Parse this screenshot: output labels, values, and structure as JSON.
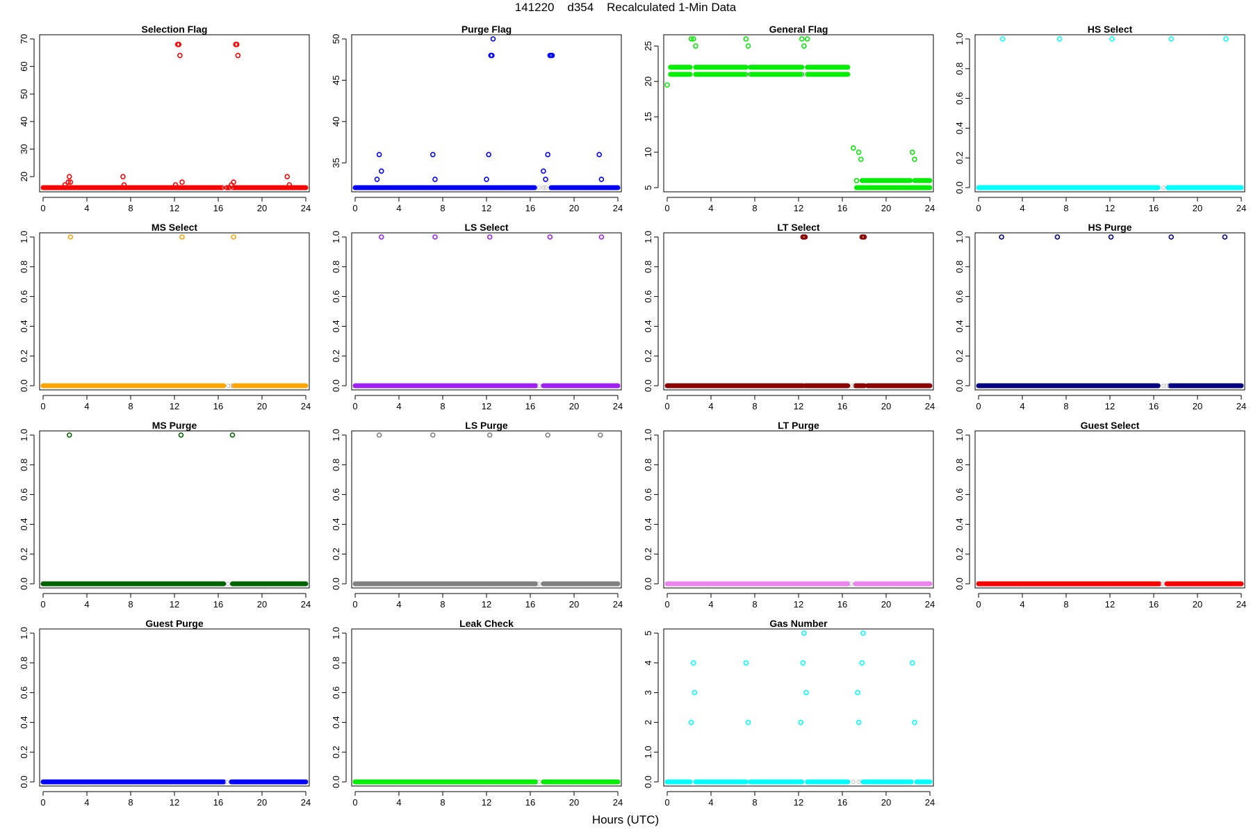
{
  "figure": {
    "title": "141220    d354    Recalculated 1-Min Data",
    "xlabel": "Hours (UTC)"
  },
  "chart_data": [
    {
      "type": "scatter",
      "title": "Selection Flag",
      "color": "#ff0000",
      "xlim": [
        0,
        24
      ],
      "ylim": [
        16,
        70
      ],
      "xticks": [
        0,
        4,
        8,
        12,
        16,
        20,
        24
      ],
      "yticks": [
        20,
        30,
        40,
        50,
        60,
        70
      ],
      "baseline": 16,
      "baseline_segments": [
        [
          0,
          16.4
        ],
        [
          16.7,
          17.1
        ],
        [
          17.3,
          24
        ]
      ],
      "baseline_gap_markers": [
        16.55,
        17.2
      ],
      "points": [
        [
          2.0,
          17
        ],
        [
          2.3,
          18
        ],
        [
          2.4,
          20
        ],
        [
          2.5,
          18
        ],
        [
          7.3,
          20
        ],
        [
          7.4,
          17
        ],
        [
          12.1,
          17
        ],
        [
          12.3,
          68
        ],
        [
          12.4,
          68
        ],
        [
          12.5,
          64
        ],
        [
          12.7,
          18
        ],
        [
          17.2,
          17
        ],
        [
          17.4,
          18
        ],
        [
          17.6,
          68
        ],
        [
          17.7,
          68
        ],
        [
          17.8,
          64
        ],
        [
          22.3,
          20
        ],
        [
          22.5,
          17
        ]
      ]
    },
    {
      "type": "scatter",
      "title": "Purge Flag",
      "color": "#0000ff",
      "xlim": [
        0,
        24
      ],
      "ylim": [
        32,
        50
      ],
      "xticks": [
        0,
        4,
        8,
        12,
        16,
        20,
        24
      ],
      "yticks": [
        35,
        40,
        45,
        50
      ],
      "baseline": 32,
      "baseline_segments": [
        [
          0,
          12.4
        ],
        [
          12.5,
          16.4
        ],
        [
          17.9,
          24
        ]
      ],
      "baseline_gap_markers": [
        16.8,
        17.2,
        17.4
      ],
      "points": [
        [
          2.0,
          33
        ],
        [
          2.2,
          36
        ],
        [
          2.4,
          34
        ],
        [
          7.1,
          36
        ],
        [
          7.3,
          33
        ],
        [
          12.0,
          33
        ],
        [
          12.2,
          36
        ],
        [
          12.4,
          48
        ],
        [
          12.5,
          48
        ],
        [
          12.6,
          50
        ],
        [
          17.2,
          34
        ],
        [
          17.4,
          33
        ],
        [
          17.6,
          36
        ],
        [
          17.8,
          48
        ],
        [
          17.9,
          48
        ],
        [
          18.0,
          48
        ],
        [
          22.3,
          36
        ],
        [
          22.5,
          33
        ]
      ]
    },
    {
      "type": "scatter",
      "title": "General Flag",
      "color": "#00ee00",
      "xlim": [
        0,
        24
      ],
      "ylim": [
        5,
        26
      ],
      "xticks": [
        0,
        4,
        8,
        12,
        16,
        20,
        24
      ],
      "yticks": [
        5,
        10,
        15,
        20,
        25
      ],
      "baseline": 21,
      "baseline_segments": [
        [
          0.3,
          2.1
        ],
        [
          2.6,
          7.2
        ],
        [
          7.6,
          12.3
        ],
        [
          12.8,
          16.5
        ]
      ],
      "baseline_gap_markers": [
        7.4,
        12.5
      ],
      "points": [
        [
          0,
          19.5
        ],
        [
          2.2,
          26
        ],
        [
          2.4,
          26
        ],
        [
          2.6,
          25
        ],
        [
          7.2,
          26
        ],
        [
          7.4,
          25
        ],
        [
          12.3,
          26
        ],
        [
          12.5,
          25
        ],
        [
          12.8,
          26
        ],
        [
          17.0,
          10.6
        ],
        [
          17.3,
          6
        ],
        [
          17.5,
          10
        ],
        [
          17.7,
          9
        ],
        [
          22.4,
          10
        ],
        [
          22.6,
          9
        ]
      ],
      "bands": [
        {
          "y": 22,
          "segments": [
            [
              0.3,
              2.1
            ],
            [
              2.6,
              7.2
            ],
            [
              7.6,
              12.3
            ],
            [
              12.8,
              16.5
            ]
          ]
        },
        {
          "y": 6,
          "segments": [
            [
              17.8,
              22.2
            ],
            [
              22.6,
              24
            ]
          ]
        },
        {
          "y": 5,
          "segments": [
            [
              17.3,
              24
            ]
          ]
        }
      ]
    },
    {
      "type": "scatter",
      "title": "HS Select",
      "color": "#00ffff",
      "xlim": [
        0,
        24
      ],
      "ylim": [
        0,
        1
      ],
      "xticks": [
        0,
        4,
        8,
        12,
        16,
        20,
        24
      ],
      "yticks": [
        0.0,
        0.2,
        0.4,
        0.6,
        0.8,
        1.0
      ],
      "baseline": 0,
      "baseline_segments": [
        [
          0,
          16.4
        ],
        [
          17.3,
          24
        ]
      ],
      "baseline_gap_markers": [
        16.9
      ],
      "points": [
        [
          2.2,
          1
        ],
        [
          7.4,
          1
        ],
        [
          12.2,
          1
        ],
        [
          17.6,
          1
        ],
        [
          22.6,
          1
        ]
      ]
    },
    {
      "type": "scatter",
      "title": "MS Select",
      "color": "#ffa500",
      "xlim": [
        0,
        24
      ],
      "ylim": [
        0,
        1
      ],
      "xticks": [
        0,
        4,
        8,
        12,
        16,
        20,
        24
      ],
      "yticks": [
        0.0,
        0.2,
        0.4,
        0.6,
        0.8,
        1.0
      ],
      "baseline": 0,
      "baseline_segments": [
        [
          0,
          16.5
        ],
        [
          17.4,
          24
        ]
      ],
      "baseline_gap_markers": [
        16.9,
        17.2
      ],
      "points": [
        [
          2.5,
          1
        ],
        [
          12.7,
          1
        ],
        [
          17.4,
          1
        ]
      ]
    },
    {
      "type": "scatter",
      "title": "LS Select",
      "color": "#a020f0",
      "xlim": [
        0,
        24
      ],
      "ylim": [
        0,
        1
      ],
      "xticks": [
        0,
        4,
        8,
        12,
        16,
        20,
        24
      ],
      "yticks": [
        0.0,
        0.2,
        0.4,
        0.6,
        0.8,
        1.0
      ],
      "baseline": 0,
      "baseline_segments": [
        [
          0,
          16.5
        ],
        [
          17.2,
          24
        ]
      ],
      "baseline_gap_markers": [
        16.8
      ],
      "points": [
        [
          2.4,
          1
        ],
        [
          7.3,
          1
        ],
        [
          12.3,
          1
        ],
        [
          17.8,
          1
        ],
        [
          22.5,
          1
        ]
      ]
    },
    {
      "type": "scatter",
      "title": "LT Select",
      "color": "#8b0000",
      "xlim": [
        0,
        24
      ],
      "ylim": [
        0,
        1
      ],
      "xticks": [
        0,
        4,
        8,
        12,
        16,
        20,
        24
      ],
      "yticks": [
        0.0,
        0.2,
        0.4,
        0.6,
        0.8,
        1.0
      ],
      "baseline": 0,
      "baseline_segments": [
        [
          0,
          12.4
        ],
        [
          12.6,
          16.5
        ],
        [
          17.2,
          18.0
        ],
        [
          18.3,
          24
        ]
      ],
      "baseline_gap_markers": [
        16.9
      ],
      "points": [
        [
          12.4,
          1
        ],
        [
          12.5,
          1
        ],
        [
          12.6,
          1
        ],
        [
          17.8,
          1
        ],
        [
          17.9,
          1
        ],
        [
          18.0,
          1
        ]
      ]
    },
    {
      "type": "scatter",
      "title": "HS Purge",
      "color": "#000080",
      "xlim": [
        0,
        24
      ],
      "ylim": [
        0,
        1
      ],
      "xticks": [
        0,
        4,
        8,
        12,
        16,
        20,
        24
      ],
      "yticks": [
        0.0,
        0.2,
        0.4,
        0.6,
        0.8,
        1.0
      ],
      "baseline": 0,
      "baseline_segments": [
        [
          0,
          16.4
        ],
        [
          17.5,
          24
        ]
      ],
      "baseline_gap_markers": [
        16.9,
        17.2
      ],
      "points": [
        [
          2.1,
          1
        ],
        [
          7.2,
          1
        ],
        [
          12.1,
          1
        ],
        [
          17.6,
          1
        ],
        [
          22.5,
          1
        ]
      ]
    },
    {
      "type": "scatter",
      "title": "MS Purge",
      "color": "#006400",
      "xlim": [
        0,
        24
      ],
      "ylim": [
        0,
        1
      ],
      "xticks": [
        0,
        4,
        8,
        12,
        16,
        20,
        24
      ],
      "yticks": [
        0.0,
        0.2,
        0.4,
        0.6,
        0.8,
        1.0
      ],
      "baseline": 0,
      "baseline_segments": [
        [
          0,
          16.5
        ],
        [
          17.3,
          24
        ]
      ],
      "baseline_gap_markers": [
        16.9
      ],
      "points": [
        [
          2.4,
          1
        ],
        [
          12.6,
          1
        ],
        [
          17.3,
          1
        ]
      ]
    },
    {
      "type": "scatter",
      "title": "LS Purge",
      "color": "#808080",
      "xlim": [
        0,
        24
      ],
      "ylim": [
        0,
        1
      ],
      "xticks": [
        0,
        4,
        8,
        12,
        16,
        20,
        24
      ],
      "yticks": [
        0.0,
        0.2,
        0.4,
        0.6,
        0.8,
        1.0
      ],
      "baseline": 0,
      "baseline_segments": [
        [
          0,
          16.5
        ],
        [
          17.2,
          24
        ]
      ],
      "baseline_gap_markers": [
        16.8
      ],
      "points": [
        [
          2.2,
          1
        ],
        [
          7.1,
          1
        ],
        [
          12.3,
          1
        ],
        [
          17.6,
          1
        ],
        [
          22.4,
          1
        ]
      ]
    },
    {
      "type": "scatter",
      "title": "LT Purge",
      "color": "#ee82ee",
      "xlim": [
        0,
        24
      ],
      "ylim": [
        0,
        1
      ],
      "xticks": [
        0,
        4,
        8,
        12,
        16,
        20,
        24
      ],
      "yticks": [
        0.0,
        0.2,
        0.4,
        0.6,
        0.8,
        1.0
      ],
      "baseline": 0,
      "baseline_segments": [
        [
          0,
          16.5
        ],
        [
          17.2,
          24
        ]
      ],
      "baseline_gap_markers": [
        16.8
      ],
      "points": []
    },
    {
      "type": "scatter",
      "title": "Guest Select",
      "color": "#ff0000",
      "xlim": [
        0,
        24
      ],
      "ylim": [
        0,
        1
      ],
      "xticks": [
        0,
        4,
        8,
        12,
        16,
        20,
        24
      ],
      "yticks": [
        0.0,
        0.2,
        0.4,
        0.6,
        0.8,
        1.0
      ],
      "baseline": 0,
      "baseline_segments": [
        [
          0,
          16.5
        ],
        [
          17.2,
          24
        ]
      ],
      "baseline_gap_markers": [
        16.8
      ],
      "points": []
    },
    {
      "type": "scatter",
      "title": "Guest Purge",
      "color": "#0000ff",
      "xlim": [
        0,
        24
      ],
      "ylim": [
        0,
        1
      ],
      "xticks": [
        0,
        4,
        8,
        12,
        16,
        20,
        24
      ],
      "yticks": [
        0.0,
        0.2,
        0.4,
        0.6,
        0.8,
        1.0
      ],
      "baseline": 0,
      "baseline_segments": [
        [
          0,
          16.5
        ],
        [
          17.2,
          24
        ]
      ],
      "baseline_gap_markers": [
        16.8
      ],
      "points": []
    },
    {
      "type": "scatter",
      "title": "Leak Check",
      "color": "#00ee00",
      "xlim": [
        0,
        24
      ],
      "ylim": [
        0,
        1
      ],
      "xticks": [
        0,
        4,
        8,
        12,
        16,
        20,
        24
      ],
      "yticks": [
        0.0,
        0.2,
        0.4,
        0.6,
        0.8,
        1.0
      ],
      "baseline": 0,
      "baseline_segments": [
        [
          0,
          16.5
        ],
        [
          17.2,
          24
        ]
      ],
      "baseline_gap_markers": [
        16.8
      ],
      "points": []
    },
    {
      "type": "scatter",
      "title": "Gas Number",
      "color": "#00ffff",
      "xlim": [
        0,
        24
      ],
      "ylim": [
        0,
        5
      ],
      "xticks": [
        0,
        4,
        8,
        12,
        16,
        20,
        24
      ],
      "yticks": [
        0,
        1,
        2,
        3,
        4,
        5
      ],
      "baseline": 0,
      "baseline_segments": [
        [
          0,
          2.1
        ],
        [
          2.6,
          7.2
        ],
        [
          7.6,
          12.3
        ],
        [
          12.8,
          16.5
        ],
        [
          17.9,
          22.3
        ],
        [
          22.8,
          24
        ]
      ],
      "baseline_gap_markers": [
        17.0,
        17.5
      ],
      "points": [
        [
          2.2,
          2
        ],
        [
          2.4,
          4
        ],
        [
          2.5,
          3
        ],
        [
          7.2,
          4
        ],
        [
          7.4,
          2
        ],
        [
          12.2,
          2
        ],
        [
          12.4,
          4
        ],
        [
          12.5,
          5
        ],
        [
          12.7,
          3
        ],
        [
          17.4,
          3
        ],
        [
          17.5,
          2
        ],
        [
          17.8,
          4
        ],
        [
          17.9,
          5
        ],
        [
          22.4,
          4
        ],
        [
          22.6,
          2
        ]
      ]
    }
  ]
}
